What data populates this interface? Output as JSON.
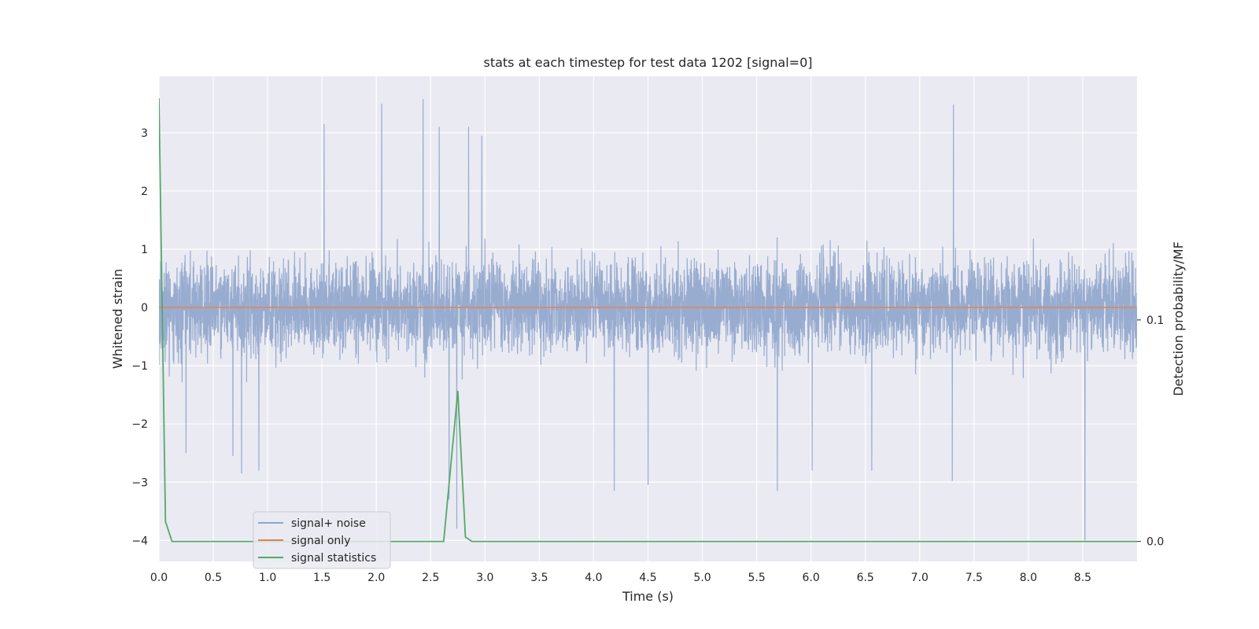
{
  "chart_data": {
    "type": "line",
    "title": "stats at each timestep for test data 1202 [signal=0]",
    "xlabel": "Time (s)",
    "ylabel": "Whitened strain",
    "ylabel_right": "Detection probability/MF",
    "xlim": [
      0.0,
      9.0
    ],
    "ylim": [
      -4.36,
      3.97
    ],
    "ylim_right": [
      -0.009,
      0.21
    ],
    "x_ticks": [
      0.0,
      0.5,
      1.0,
      1.5,
      2.0,
      2.5,
      3.0,
      3.5,
      4.0,
      4.5,
      5.0,
      5.5,
      6.0,
      6.5,
      7.0,
      7.5,
      8.0,
      8.5
    ],
    "x_tick_labels": [
      "0.0",
      "0.5",
      "1.0",
      "1.5",
      "2.0",
      "2.5",
      "3.0",
      "3.5",
      "4.0",
      "4.5",
      "5.0",
      "5.5",
      "6.0",
      "6.5",
      "7.0",
      "7.5",
      "8.0",
      "8.5"
    ],
    "y_ticks": [
      3,
      2,
      1,
      0,
      -1,
      -2,
      -3,
      -4
    ],
    "y_tick_labels": [
      "3",
      "2",
      "1",
      "0",
      "−1",
      "−2",
      "−3",
      "−4"
    ],
    "y_right_ticks": [
      0.1,
      0.0
    ],
    "y_right_tick_labels": [
      "0.1",
      "0.0"
    ],
    "grid": true,
    "legend_position": "lower-left",
    "colors": {
      "axes_bg": "#eaeaf2",
      "grid": "#ffffff",
      "noise": "#8fa5cc",
      "signal_only": "#dd8452",
      "statistics": "#55a868"
    },
    "series": [
      {
        "name": "signal+ noise",
        "axis": "left",
        "note": "dense noise trace approx. uniform over 0-9 s, mostly within -1.5..1.5",
        "envelope_upper": 1.6,
        "envelope_lower": -1.6,
        "spikes": [
          {
            "x": 1.52,
            "y": 3.15
          },
          {
            "x": 2.05,
            "y": 3.5
          },
          {
            "x": 2.43,
            "y": 3.58
          },
          {
            "x": 2.58,
            "y": 3.1
          },
          {
            "x": 2.85,
            "y": 3.1
          },
          {
            "x": 2.97,
            "y": 2.95
          },
          {
            "x": 7.31,
            "y": 3.48
          },
          {
            "x": 0.25,
            "y": -2.5
          },
          {
            "x": 0.68,
            "y": -2.55
          },
          {
            "x": 0.76,
            "y": -2.85
          },
          {
            "x": 0.92,
            "y": -2.8
          },
          {
            "x": 4.19,
            "y": -3.15
          },
          {
            "x": 4.5,
            "y": -3.05
          },
          {
            "x": 5.69,
            "y": -3.15
          },
          {
            "x": 6.01,
            "y": -2.8
          },
          {
            "x": 6.56,
            "y": -2.8
          },
          {
            "x": 7.3,
            "y": -2.98
          },
          {
            "x": 8.52,
            "y": -4.0
          },
          {
            "x": 2.67,
            "y": -3.3
          },
          {
            "x": 2.74,
            "y": -3.8
          }
        ]
      },
      {
        "name": "signal only",
        "axis": "left",
        "x": [
          0.0,
          9.0
        ],
        "values": [
          0.0,
          0.0
        ]
      },
      {
        "name": "signal statistics",
        "axis": "right",
        "x": [
          0.0,
          0.06,
          0.12,
          2.62,
          2.75,
          2.82,
          2.88,
          9.0
        ],
        "values": [
          0.2,
          0.009,
          0.0,
          0.0,
          0.068,
          0.002,
          0.0,
          0.0
        ]
      }
    ]
  }
}
